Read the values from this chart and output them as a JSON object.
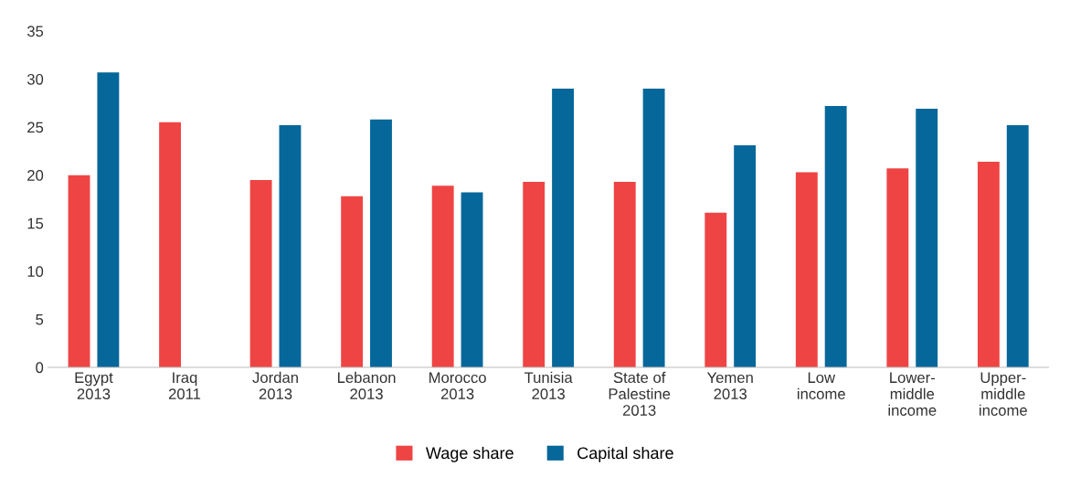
{
  "chart_data": {
    "type": "bar",
    "categories": [
      "Egypt\n2013",
      "Iraq\n2011",
      "Jordan\n2013",
      "Lebanon\n2013",
      "Morocco\n2013",
      "Tunisia\n2013",
      "State of\nPalestine\n2013",
      "Yemen\n2013",
      "Low\nincome",
      "Lower-\nmiddle\nincome",
      "Upper-\nmiddle\nincome"
    ],
    "series": [
      {
        "name": "Wage share",
        "color": "#ef4444",
        "values": [
          20.0,
          25.5,
          19.5,
          17.8,
          18.9,
          19.3,
          19.3,
          16.1,
          20.3,
          20.7,
          21.4
        ]
      },
      {
        "name": "Capital share",
        "color": "#05679a",
        "values": [
          30.7,
          null,
          25.2,
          25.8,
          18.2,
          29.0,
          29.0,
          23.1,
          27.2,
          26.9,
          25.2
        ]
      }
    ],
    "ylim": [
      0,
      35
    ],
    "yticks": [
      0,
      5,
      10,
      15,
      20,
      25,
      30,
      35
    ],
    "grid": false,
    "legend": "bottom"
  }
}
